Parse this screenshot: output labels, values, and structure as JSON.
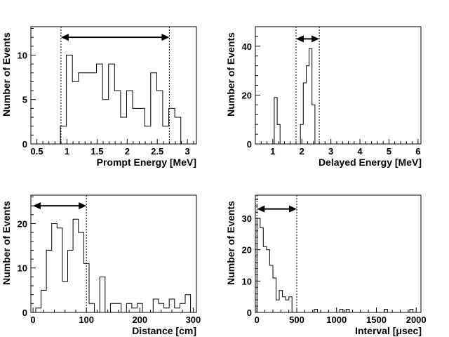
{
  "chart_data": [
    {
      "type": "histogram",
      "xlabel": "Prompt Energy [MeV]",
      "ylabel": "Number of Events",
      "xlim": [
        0.4,
        3.15
      ],
      "ylim": [
        0,
        13.2
      ],
      "xticks": [
        0.5,
        1,
        1.5,
        2,
        2.5,
        3
      ],
      "xtick_labels": [
        "0.5",
        "1",
        "1.5",
        "2",
        "2.5",
        "3"
      ],
      "yticks": [
        0,
        5,
        10
      ],
      "ytick_labels": [
        "0",
        "5",
        "10"
      ],
      "bins": {
        "start": 0.89,
        "width": 0.1,
        "values": [
          2,
          10,
          7,
          8,
          8,
          8,
          9,
          5,
          9,
          6,
          3,
          6,
          4,
          4,
          2,
          8,
          6,
          2,
          4,
          3,
          0,
          0
        ]
      },
      "cut_lines": [
        0.9,
        2.7
      ],
      "arrow": [
        0.9,
        2.7,
        12
      ]
    },
    {
      "type": "histogram",
      "xlabel": "Delayed Energy [MeV]",
      "ylabel": "Number of Events",
      "xlim": [
        0.4,
        6.1
      ],
      "ylim": [
        0,
        48
      ],
      "xticks": [
        1,
        2,
        3,
        4,
        5,
        6
      ],
      "xtick_labels": [
        "1",
        "2",
        "3",
        "4",
        "5",
        "6"
      ],
      "yticks": [
        0,
        20,
        40
      ],
      "ytick_labels": [
        "0",
        "20",
        "40"
      ],
      "bins": {
        "start": 0.95,
        "width": 0.1,
        "values": [
          0,
          19,
          8,
          0,
          0,
          0,
          0,
          0,
          0,
          0,
          8,
          25,
          32,
          39,
          16,
          0
        ]
      },
      "cut_lines": [
        1.8,
        2.6
      ],
      "arrow": [
        1.8,
        2.6,
        43
      ]
    },
    {
      "type": "histogram",
      "xlabel": "Distance [cm]",
      "ylabel": "Number of Events",
      "xlim": [
        -4,
        306
      ],
      "ylim": [
        0,
        26.4
      ],
      "xticks": [
        0,
        100,
        200,
        300
      ],
      "xtick_labels": [
        "0",
        "100",
        "200",
        "300"
      ],
      "yticks": [
        0,
        10,
        20
      ],
      "ytick_labels": [
        "0",
        "10",
        "20"
      ],
      "bins": {
        "start": 5,
        "width": 10,
        "values": [
          1,
          5,
          14,
          20,
          19,
          7,
          14,
          21,
          18,
          11,
          2,
          0,
          8,
          0,
          2,
          2,
          0,
          2,
          1,
          2,
          0,
          0,
          3,
          2,
          1,
          3,
          1,
          2,
          4
        ]
      },
      "cut_lines": [
        100
      ],
      "arrow": [
        0,
        100,
        24
      ]
    },
    {
      "type": "histogram",
      "xlabel": "Interval [μsec]",
      "ylabel": "Number of Events",
      "xlim": [
        -20,
        2060
      ],
      "ylim": [
        0,
        37.4
      ],
      "xticks": [
        0,
        500,
        1000,
        1500,
        2000
      ],
      "xtick_labels": [
        "0",
        "500",
        "1000",
        "1500",
        "2000"
      ],
      "yticks": [
        0,
        10,
        20,
        30
      ],
      "ytick_labels": [
        "0",
        "10",
        "20",
        "30"
      ],
      "bins": {
        "start": 0,
        "width": 40,
        "values": [
          30,
          27,
          21,
          20,
          15,
          11,
          4,
          7,
          5,
          4,
          5,
          0,
          0,
          0,
          0,
          0,
          0,
          0,
          1,
          0,
          0,
          0,
          0,
          0,
          0,
          0,
          1,
          0,
          1,
          0,
          0,
          0,
          0,
          0,
          0,
          0,
          0,
          0,
          0,
          0,
          1,
          0,
          0,
          0,
          0,
          0,
          0,
          0,
          1,
          0,
          0,
          0
        ]
      },
      "cut_lines": [
        0,
        500
      ],
      "arrow": [
        0,
        500,
        33
      ]
    }
  ]
}
